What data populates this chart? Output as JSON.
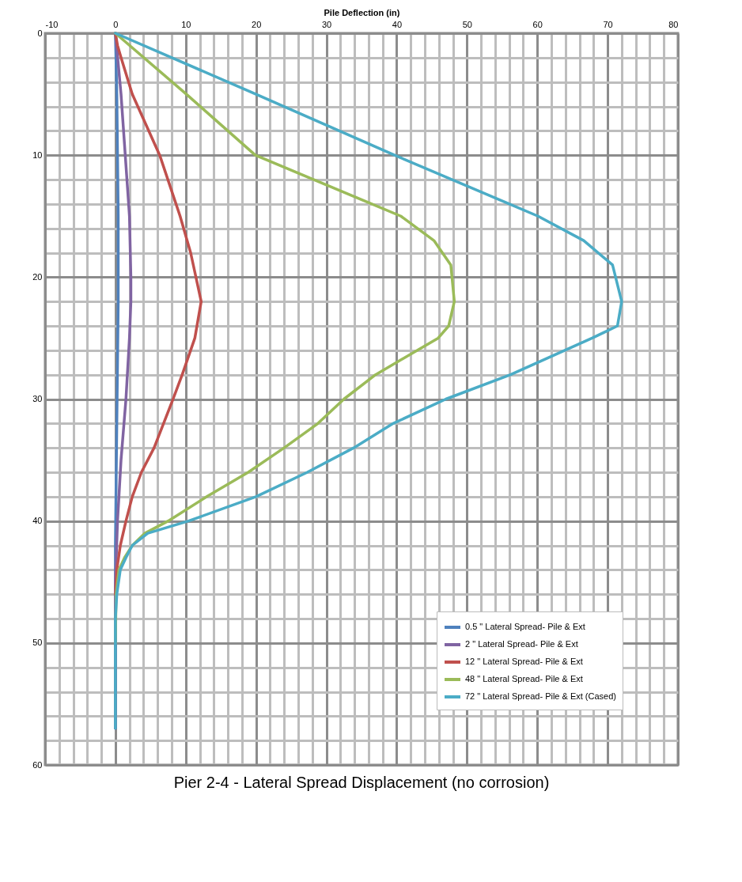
{
  "chart_data": {
    "type": "line",
    "title": "Pier 2-4 - Lateral Spread Displacement (no corrosion)",
    "xlabel": "Pile Deflection (in)",
    "xlim": [
      -10,
      80
    ],
    "ylim": [
      60,
      0
    ],
    "xticks": [
      -10,
      {
        "value": -8,
        "label": null
      },
      {
        "value": -6,
        "label": null
      },
      {
        "value": -4,
        "label": null
      },
      {
        "value": -2,
        "label": null
      },
      0,
      {
        "value": 2,
        "label": null
      },
      {
        "value": 4,
        "label": null
      },
      {
        "value": 6,
        "label": null
      },
      {
        "value": 8,
        "label": null
      },
      10,
      {
        "value": 12,
        "label": null
      },
      {
        "value": 14,
        "label": null
      },
      {
        "value": 16,
        "label": null
      },
      {
        "value": 18,
        "label": null
      },
      20,
      {
        "value": 22,
        "label": null
      },
      {
        "value": 24,
        "label": null
      },
      {
        "value": 26,
        "label": null
      },
      {
        "value": 28,
        "label": null
      },
      30,
      {
        "value": 32,
        "label": null
      },
      {
        "value": 34,
        "label": null
      },
      {
        "value": 36,
        "label": null
      },
      {
        "value": 38,
        "label": null
      },
      40,
      {
        "value": 42,
        "label": null
      },
      {
        "value": 44,
        "label": null
      },
      {
        "value": 46,
        "label": null
      },
      {
        "value": 48,
        "label": null
      },
      50,
      {
        "value": 52,
        "label": null
      },
      {
        "value": 54,
        "label": null
      },
      {
        "value": 56,
        "label": null
      },
      {
        "value": 58,
        "label": null
      },
      60,
      {
        "value": 62,
        "label": null
      },
      {
        "value": 64,
        "label": null
      },
      {
        "value": 66,
        "label": null
      },
      {
        "value": 68,
        "label": null
      },
      70,
      {
        "value": 72,
        "label": null
      },
      {
        "value": 74,
        "label": null
      },
      {
        "value": 76,
        "label": null
      },
      {
        "value": 78,
        "label": null
      },
      80
    ],
    "yticks": [
      0,
      {
        "value": 2,
        "label": null
      },
      {
        "value": 4,
        "label": null
      },
      {
        "value": 6,
        "label": null
      },
      {
        "value": 8,
        "label": null
      },
      10,
      {
        "value": 12,
        "label": null
      },
      {
        "value": 14,
        "label": null
      },
      {
        "value": 16,
        "label": null
      },
      {
        "value": 18,
        "label": null
      },
      20,
      {
        "value": 22,
        "label": null
      },
      {
        "value": 24,
        "label": null
      },
      {
        "value": 26,
        "label": null
      },
      {
        "value": 28,
        "label": null
      },
      30,
      {
        "value": 32,
        "label": null
      },
      {
        "value": 34,
        "label": null
      },
      {
        "value": 36,
        "label": null
      },
      {
        "value": 38,
        "label": null
      },
      40,
      {
        "value": 42,
        "label": null
      },
      {
        "value": 44,
        "label": null
      },
      {
        "value": 46,
        "label": null
      },
      {
        "value": 48,
        "label": null
      },
      50,
      {
        "value": 52,
        "label": null
      },
      {
        "value": 54,
        "label": null
      },
      {
        "value": 56,
        "label": null
      },
      {
        "value": 58,
        "label": null
      },
      60
    ],
    "grid": true,
    "legend": "bottom right",
    "marker": "none",
    "line_style": "solid",
    "series": [
      {
        "name": "0.5 \" Lateral Spread- Pile & Ext",
        "color": "#4f81bd",
        "x": [
          0,
          0.2,
          0.3,
          0.4,
          0.4,
          0.3,
          0.2,
          0.1,
          0,
          0,
          0
        ],
        "values": [
          0,
          5,
          10,
          15,
          22,
          27,
          32,
          37,
          42,
          50,
          57
        ]
      },
      {
        "name": "2 \" Lateral Spread- Pile & Ext",
        "color": "#8064a2",
        "x": [
          0,
          0.8,
          1.4,
          2.0,
          2.2,
          2.2,
          2.0,
          1.5,
          0.8,
          0.3,
          0,
          0,
          0
        ],
        "values": [
          0,
          5,
          10,
          15,
          20,
          22,
          25,
          30,
          35,
          40,
          45,
          50,
          57
        ]
      },
      {
        "name": "12 \" Lateral Spread- Pile & Ext",
        "color": "#c0504d",
        "x": [
          0,
          0.3,
          0.8,
          2.4,
          6.3,
          9.2,
          10.7,
          12.2,
          11.3,
          9.5,
          8.2,
          5.5,
          3.7,
          2.4,
          1.5,
          0.7,
          0.2,
          0
        ],
        "values": [
          0,
          1,
          2,
          5,
          10,
          15,
          18,
          22,
          25,
          28,
          30,
          34,
          36,
          38,
          40,
          42,
          44,
          46
        ]
      },
      {
        "name": "48 \" Lateral Spread- Pile & Ext",
        "color": "#9bbb59",
        "x": [
          0,
          10.1,
          19.9,
          40.6,
          45.3,
          47.7,
          48.2,
          47.4,
          45.9,
          37,
          32.5,
          28.8,
          24,
          18.9,
          13,
          7.5,
          4.2,
          2.4,
          1.3,
          0.5,
          0.1,
          0
        ],
        "values": [
          0,
          5,
          10,
          15,
          17,
          19,
          22,
          24,
          25,
          28,
          30,
          32,
          34,
          36,
          38,
          40,
          41,
          42,
          43,
          44,
          46,
          50
        ]
      },
      {
        "name": "72 \" Lateral Spread- Pile & Ext (Cased)",
        "color": "#4bacc6",
        "x": [
          0,
          20,
          39.7,
          60.1,
          66.6,
          70.7,
          72,
          71.4,
          67.8,
          56.2,
          47,
          39.5,
          33.9,
          27.3,
          20,
          10.4,
          4.6,
          2.4,
          1.5,
          0.7,
          0.2,
          0,
          0
        ],
        "values": [
          0,
          5,
          10,
          15,
          17,
          19,
          22,
          24,
          25,
          28,
          30,
          32,
          34,
          36,
          38,
          40,
          41,
          42,
          43,
          44,
          46,
          48,
          57
        ]
      }
    ]
  }
}
